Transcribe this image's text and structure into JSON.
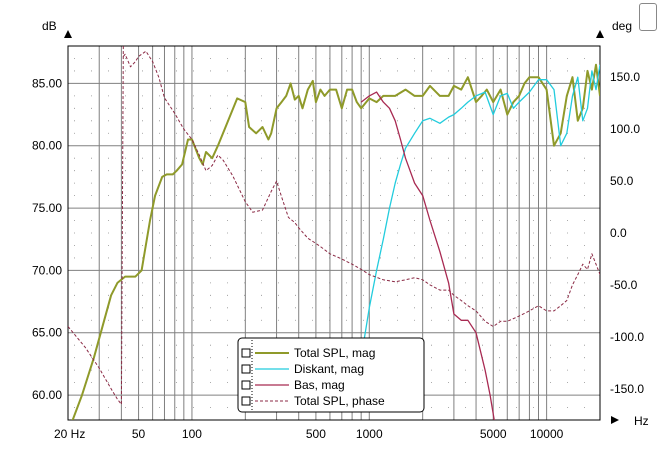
{
  "chart_data": {
    "type": "line",
    "title": "",
    "x_scale": "log",
    "xlim": [
      20,
      20000
    ],
    "ylim": [
      58,
      88
    ],
    "y2lim": [
      -180,
      180
    ],
    "ylabel": "dB",
    "y2label": "deg",
    "xlabel": "Hz",
    "grid": true,
    "legend_position": "bottom-center",
    "x_tick_labels": [
      {
        "v": 20,
        "label": "20 Hz"
      },
      {
        "v": 50,
        "label": "50"
      },
      {
        "v": 100,
        "label": "100"
      },
      {
        "v": 500,
        "label": "500"
      },
      {
        "v": 1000,
        "label": "1000"
      },
      {
        "v": 5000,
        "label": "5000"
      },
      {
        "v": 10000,
        "label": "10000"
      }
    ],
    "y_tick_labels": [
      "85.00",
      "80.00",
      "75.00",
      "70.00",
      "65.00",
      "60.00"
    ],
    "y_ticks": [
      85,
      80,
      75,
      70,
      65,
      60
    ],
    "y2_tick_labels": [
      "150.0",
      "100.0",
      "50.0",
      "0.0",
      "-50.0",
      "-100.0",
      "-150.0"
    ],
    "y2_ticks": [
      150,
      100,
      50,
      0,
      -50,
      -100,
      -150
    ],
    "series": [
      {
        "name": "Total SPL, mag",
        "axis": "left",
        "color": "#8f9a2a",
        "width": 2,
        "dash": "",
        "x": [
          20,
          24,
          28,
          32,
          35,
          38,
          42,
          48,
          52,
          58,
          62,
          68,
          72,
          78,
          82,
          88,
          95,
          100,
          110,
          115,
          120,
          130,
          140,
          160,
          180,
          200,
          210,
          230,
          250,
          270,
          280,
          300,
          320,
          340,
          360,
          380,
          400,
          420,
          450,
          480,
          500,
          530,
          560,
          600,
          650,
          700,
          750,
          800,
          850,
          900,
          1000,
          1100,
          1200,
          1400,
          1600,
          1800,
          2000,
          2200,
          2500,
          2800,
          3000,
          3300,
          3600,
          4000,
          4300,
          4600,
          5000,
          5500,
          6000,
          6500,
          7000,
          7500,
          8000,
          9000,
          10000,
          11000,
          12000,
          13000,
          14000,
          15000,
          16000,
          17000,
          18000,
          19000,
          20000
        ],
        "y": [
          57,
          60,
          63,
          66,
          68,
          69,
          69.5,
          69.5,
          70,
          74,
          76,
          77.5,
          77.7,
          77.7,
          78,
          78.5,
          80.5,
          80.5,
          79,
          78.5,
          79.5,
          79,
          80,
          82,
          83.8,
          83.5,
          81.5,
          81,
          81.5,
          80.5,
          81,
          83,
          83.5,
          84,
          85,
          83.7,
          84,
          83,
          84.5,
          85.2,
          83.5,
          84.5,
          84,
          84.5,
          84.5,
          83,
          84.5,
          84.5,
          83.5,
          83,
          83.8,
          83.5,
          84,
          84,
          84.5,
          84,
          84,
          84.8,
          84,
          84,
          84.8,
          84.5,
          85.5,
          83.5,
          84,
          84.5,
          83.5,
          84.5,
          82.5,
          83.5,
          84,
          85,
          85.5,
          85.5,
          84.5,
          80,
          81,
          84,
          85.5,
          82,
          83,
          86,
          84.5,
          86.5,
          84
        ]
      },
      {
        "name": "Diskant, mag",
        "axis": "left",
        "color": "#22ccdd",
        "width": 1.3,
        "dash": "",
        "x": [
          900,
          1000,
          1100,
          1200,
          1300,
          1400,
          1500,
          1600,
          1800,
          2000,
          2200,
          2500,
          2800,
          3000,
          3300,
          3600,
          4000,
          4500,
          5000,
          5500,
          6000,
          6500,
          7000,
          8000,
          9000,
          10000,
          11000,
          12000,
          13000,
          14000,
          15000,
          16000,
          17000,
          18000,
          19000,
          20000
        ],
        "y": [
          63,
          67,
          70,
          72.5,
          75,
          77,
          78.5,
          79.8,
          81,
          82,
          82.2,
          81.8,
          82.3,
          82.5,
          83,
          83.5,
          84,
          84.3,
          82.5,
          84,
          84.2,
          83,
          83.5,
          84.3,
          85.3,
          85.3,
          84.5,
          80,
          81,
          84,
          85.5,
          82,
          83,
          86,
          84.5,
          86.5
        ]
      },
      {
        "name": "Bas, mag",
        "axis": "left",
        "color": "#a82a52",
        "width": 1.3,
        "dash": "",
        "x": [
          900,
          1000,
          1100,
          1200,
          1300,
          1400,
          1500,
          1600,
          1800,
          2000,
          2200,
          2500,
          2800,
          3000,
          3300,
          3600,
          4000,
          4500,
          4800,
          5000,
          5200,
          5500
        ],
        "y": [
          83.5,
          84,
          84.3,
          83.5,
          83,
          82,
          80.5,
          79,
          77,
          76,
          74,
          71.5,
          69,
          66.5,
          66,
          66,
          65,
          62,
          60,
          58.5,
          57,
          55
        ]
      },
      {
        "name": "Total SPL, phase",
        "axis": "right",
        "color": "#8b2a45",
        "width": 1,
        "dash": "3,2",
        "x": [
          20,
          25,
          30,
          35,
          38,
          40,
          41,
          42,
          45,
          48,
          50,
          55,
          60,
          65,
          70,
          80,
          90,
          100,
          110,
          120,
          130,
          140,
          150,
          170,
          200,
          220,
          250,
          280,
          300,
          320,
          350,
          380,
          400,
          450,
          500,
          550,
          600,
          700,
          800,
          900,
          1000,
          1200,
          1400,
          1600,
          1800,
          2000,
          2200,
          2500,
          2800,
          3000,
          3300,
          3600,
          4000,
          4500,
          5000,
          5500,
          6000,
          7000,
          8000,
          9000,
          10000,
          11000,
          12000,
          13000,
          14000,
          15000,
          16000,
          17000,
          18000,
          19000,
          20000
        ],
        "y": [
          -90,
          -110,
          -130,
          -150,
          -160,
          -165,
          170,
          172,
          160,
          165,
          170,
          175,
          165,
          150,
          130,
          115,
          100,
          90,
          75,
          60,
          65,
          75,
          70,
          55,
          30,
          20,
          22,
          40,
          50,
          35,
          15,
          10,
          5,
          -5,
          -10,
          -15,
          -20,
          -25,
          -30,
          -35,
          -40,
          -45,
          -47,
          -45,
          -43,
          -45,
          -50,
          -55,
          -55,
          -60,
          -65,
          -70,
          -75,
          -85,
          -90,
          -85,
          -85,
          -80,
          -75,
          -70,
          -75,
          -75,
          -70,
          -65,
          -50,
          -40,
          -30,
          -35,
          -20,
          -30,
          -40
        ]
      }
    ]
  }
}
